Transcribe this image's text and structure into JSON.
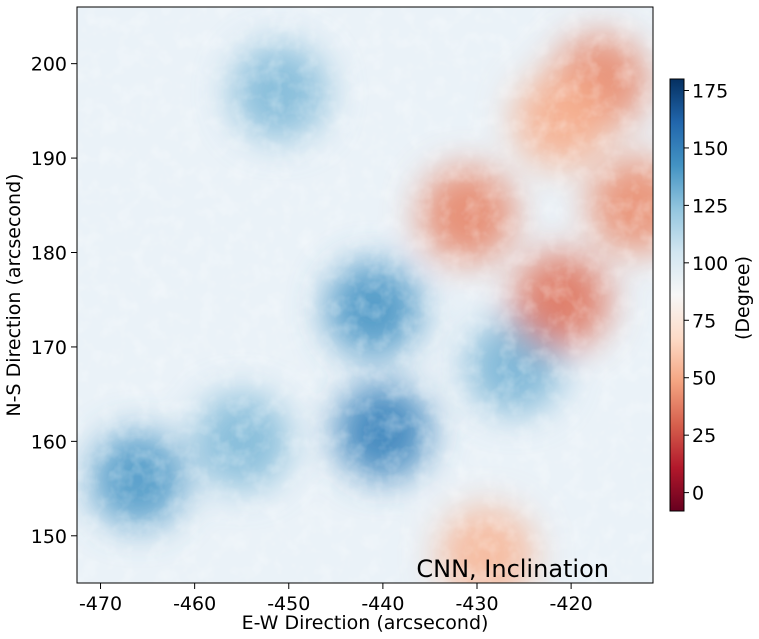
{
  "chart_data": {
    "type": "heatmap",
    "title": "",
    "annotation": "CNN, Inclination",
    "xlabel": "E-W Direction (arcsecond)",
    "ylabel": "N-S Direction (arcsecond)",
    "xlim": [
      -472.5,
      -411.3
    ],
    "ylim": [
      145.0,
      206.0
    ],
    "x_ticks": [
      -470,
      -460,
      -450,
      -440,
      -430,
      -420
    ],
    "x_tick_labels": [
      "-470",
      "-460",
      "-450",
      "-440",
      "-430",
      "-420"
    ],
    "y_ticks": [
      150,
      160,
      170,
      180,
      190,
      200
    ],
    "y_tick_labels": [
      "150",
      "160",
      "170",
      "180",
      "190",
      "200"
    ],
    "colorbar": {
      "label": "(Degree)",
      "range": [
        -8,
        180
      ],
      "ticks": [
        0,
        25,
        50,
        75,
        100,
        125,
        150,
        175
      ],
      "tick_labels": [
        "0",
        "25",
        "50",
        "75",
        "100",
        "125",
        "150",
        "175"
      ],
      "colormap": "RdBu",
      "colors": [
        "#67001f",
        "#b2182b",
        "#d6604d",
        "#f4a582",
        "#fddbc7",
        "#f7f7f7",
        "#d1e5f0",
        "#92c5de",
        "#4393c3",
        "#2166ac",
        "#053061"
      ]
    },
    "regions": [
      {
        "x": -466,
        "y": 156,
        "value": 140
      },
      {
        "x": -455,
        "y": 160,
        "value": 128
      },
      {
        "x": -451,
        "y": 197,
        "value": 128
      },
      {
        "x": -440,
        "y": 161,
        "value": 150
      },
      {
        "x": -441,
        "y": 174,
        "value": 142
      },
      {
        "x": -426,
        "y": 168,
        "value": 130
      },
      {
        "x": -431,
        "y": 184,
        "value": 40
      },
      {
        "x": -421,
        "y": 175,
        "value": 35
      },
      {
        "x": -417,
        "y": 198,
        "value": 40
      },
      {
        "x": -413,
        "y": 185,
        "value": 42
      },
      {
        "x": -421,
        "y": 194,
        "value": 52
      },
      {
        "x": -429,
        "y": 148,
        "value": 55
      }
    ]
  }
}
